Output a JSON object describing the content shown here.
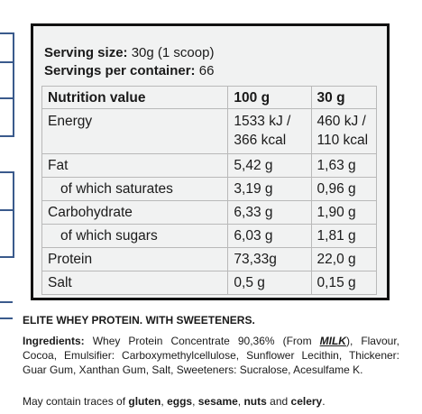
{
  "serving": {
    "size_label": "Serving size:",
    "size_value": "30g (1 scoop)",
    "per_container_label": "Servings per container:",
    "per_container_value": "66"
  },
  "table": {
    "header": [
      "Nutrition value",
      "100 g",
      "30 g"
    ],
    "rows": [
      {
        "name": "Energy",
        "per100_line1": "1533 kJ /",
        "per100_line2": "366 kcal",
        "per30_line1": "460 kJ /",
        "per30_line2": "110 kcal"
      },
      {
        "name": "Fat",
        "per100": "5,42 g",
        "per30": "1,63 g"
      },
      {
        "name": "of which saturates",
        "per100": "3,19 g",
        "per30": "0,96 g"
      },
      {
        "name": "Carbohydrate",
        "per100": "6,33 g",
        "per30": "1,90 g"
      },
      {
        "name": "of which sugars",
        "per100": "6,03 g",
        "per30": "1,81 g"
      },
      {
        "name": "Protein",
        "per100": "73,33g",
        "per30": "22,0 g"
      },
      {
        "name": "Salt",
        "per100": "0,5 g",
        "per30": "0,15 g"
      }
    ]
  },
  "product_line": "ELITE WHEY PROTEIN. WITH SWEETENERS.",
  "ingredients": {
    "label": "Ingredients:",
    "text_before_allergen": " Whey Protein Concentrate 90,36% (From ",
    "allergen": "MILK",
    "text_after_allergen": "), Flavour, Cocoa, Emulsifier: Carboxymethylcellulose, Sunflower Lecithin, Thickener: Guar Gum, Xanthan Gum, Salt, Sweeteners: Sucralose, Acesulfame K."
  },
  "traces": {
    "prefix": "May contain traces of ",
    "item1": "gluten",
    "sep1": ", ",
    "item2": "eggs",
    "sep2": ", ",
    "item3": "sesame",
    "sep3": ", ",
    "item4": "nuts",
    "sep4": " and ",
    "item5": "celery",
    "suffix": "."
  },
  "colors": {
    "panel_border": "#111111",
    "panel_background": "#f1f2f2",
    "decoration_blue": "#3a5a8c"
  }
}
